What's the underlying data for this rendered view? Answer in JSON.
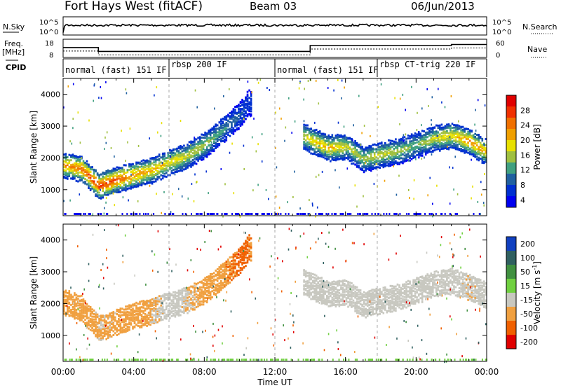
{
  "header": {
    "station": "Fort Hays West (fitACF)",
    "beam": "Beam 03",
    "date": "06/Jun/2013"
  },
  "noise_panel": {
    "left_label": "N.Sky",
    "right_label": "N.Search",
    "left_ticks": [
      "10^5",
      "10^0"
    ],
    "right_ticks": [
      "10^5",
      "10^0"
    ]
  },
  "freq_panel": {
    "left_label_1": "Freq.",
    "left_label_2": "[MHz]",
    "right_label": "Nave",
    "left_ticks": [
      "18",
      "8"
    ],
    "right_ticks": [
      "60",
      "0"
    ]
  },
  "cpid_panel": {
    "label": "CPID",
    "modes": [
      {
        "name": "normal (fast) 151 IF",
        "start_h": 0.0,
        "end_h": 6.0
      },
      {
        "name": "rbsp 200 IF",
        "start_h": 6.0,
        "end_h": 12.0
      },
      {
        "name": "normal (fast) 151 IF",
        "start_h": 12.0,
        "end_h": 17.8
      },
      {
        "name": "rbsp CT-trig 220 IF",
        "start_h": 17.8,
        "end_h": 24.0
      }
    ]
  },
  "power_panel": {
    "ylabel": "Slant Range [km]",
    "cbar_label": "Power [dB]",
    "cbar_ticks": [
      "28",
      "24",
      "20",
      "16",
      "12",
      "8",
      "4"
    ],
    "cbar_colors": [
      "#e00000",
      "#f03000",
      "#f07000",
      "#f0a000",
      "#e8e000",
      "#a0c040",
      "#40a080",
      "#2060a0",
      "#0030d0",
      "#0000f0"
    ]
  },
  "velocity_panel": {
    "ylabel": "Slant Range [km]",
    "cbar_label": "Velocity [m s",
    "cbar_label_sup": "-1",
    "cbar_label_end": "]",
    "cbar_ticks": [
      "200",
      "100",
      "50",
      "15",
      "-15",
      "-50",
      "-100",
      "-200"
    ],
    "cbar_colors": [
      "#1040c0",
      "#306060",
      "#409040",
      "#70d040",
      "#c8c8c0",
      "#f0a040",
      "#f06000",
      "#e00000"
    ]
  },
  "xaxis": {
    "label": "Time UT",
    "ticks": [
      "00:00",
      "04:00",
      "08:00",
      "12:00",
      "16:00",
      "20:00",
      "00:00"
    ]
  },
  "chart_data": {
    "type": "heatmap",
    "x_range_hours": [
      0,
      24
    ],
    "y_range_km": [
      180,
      4500
    ],
    "y_ticks_km": [
      1000,
      2000,
      3000,
      4000
    ],
    "freq_mhz": [
      {
        "t0": 0.0,
        "t1": 2.0,
        "f": 13.5
      },
      {
        "t0": 2.0,
        "t1": 12.0,
        "f": 11.0
      },
      {
        "t0": 12.0,
        "t1": 14.0,
        "f": 11.0
      },
      {
        "t0": 14.0,
        "t1": 22.0,
        "f": 14.8
      },
      {
        "t0": 22.0,
        "t1": 24.0,
        "f": 15.5
      }
    ],
    "power_band": {
      "time_h": [
        0,
        1,
        2,
        3,
        4,
        5,
        6,
        7,
        8,
        9,
        10,
        10.5,
        14,
        15,
        16,
        17,
        18,
        19,
        20,
        21,
        22,
        23,
        24
      ],
      "center_km": [
        1800,
        1700,
        1150,
        1350,
        1500,
        1650,
        1900,
        2100,
        2450,
        2900,
        3400,
        3800,
        2600,
        2350,
        2400,
        2000,
        2150,
        2250,
        2450,
        2650,
        2750,
        2550,
        2200
      ],
      "peak_db": [
        22,
        24,
        28,
        26,
        22,
        20,
        18,
        16,
        14,
        10,
        6,
        4,
        18,
        20,
        16,
        14,
        16,
        14,
        12,
        16,
        18,
        22,
        20
      ]
    },
    "velocity_band": {
      "time_h": [
        0,
        1,
        2,
        3,
        4,
        5,
        6,
        7,
        8,
        9,
        10,
        10.5,
        14,
        15,
        16,
        17,
        18,
        19,
        20,
        21,
        22,
        23,
        24
      ],
      "center_km": [
        2100,
        1900,
        1250,
        1450,
        1650,
        1800,
        2000,
        2150,
        2450,
        2900,
        3400,
        3800,
        2600,
        2350,
        2400,
        2000,
        2150,
        2250,
        2450,
        2650,
        2750,
        2550,
        2300
      ],
      "velocity_ms": [
        -30,
        -40,
        -20,
        -25,
        -35,
        -20,
        0,
        -10,
        -30,
        -40,
        -60,
        -50,
        0,
        0,
        0,
        5,
        0,
        0,
        0,
        0,
        0,
        -10,
        0
      ]
    }
  }
}
